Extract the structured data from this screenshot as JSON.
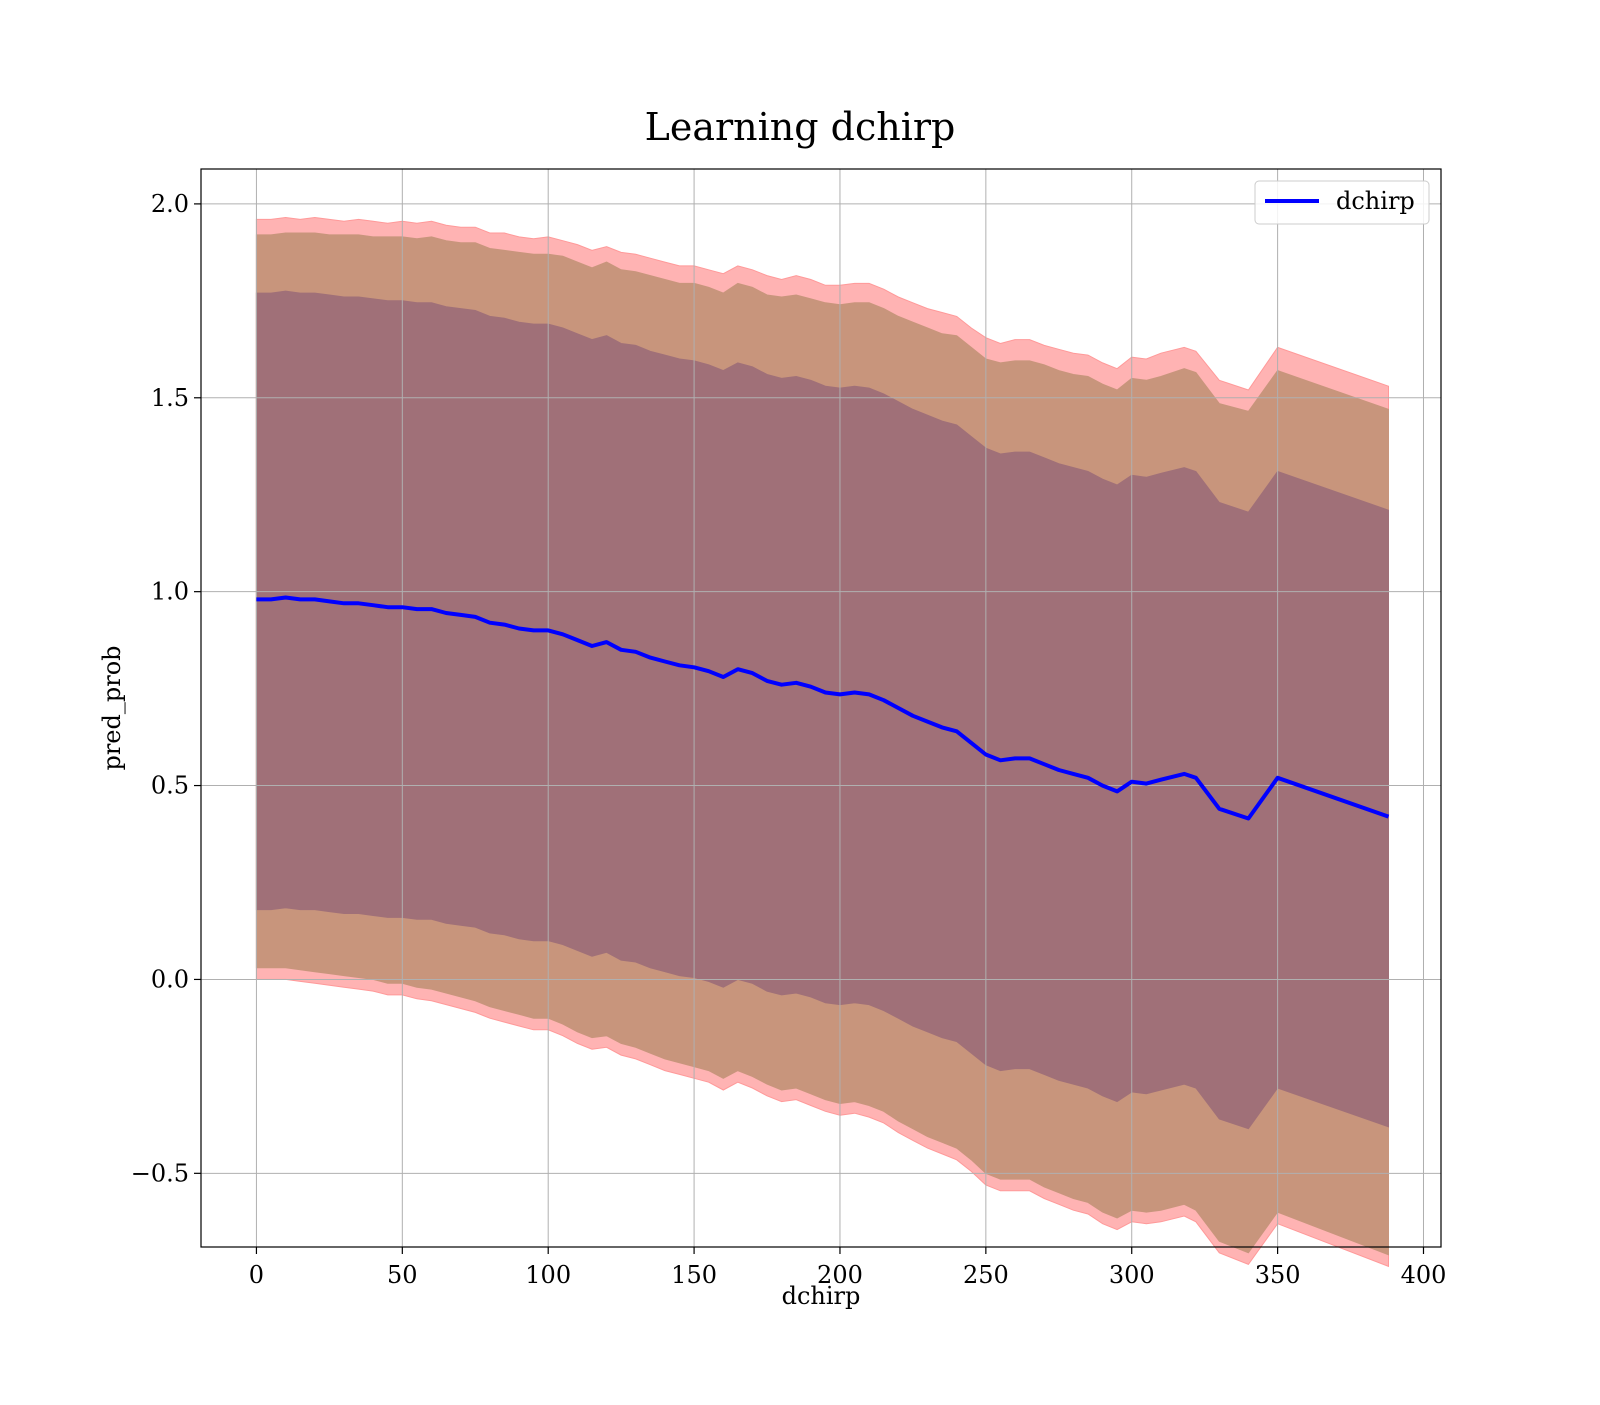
{
  "chart_data": {
    "type": "line",
    "title": "Learning dchirp",
    "xlabel": "dchirp",
    "ylabel": "pred_prob",
    "xlim": [
      -19,
      406
    ],
    "ylim": [
      -0.69,
      2.09
    ],
    "x_ticks": [
      0,
      50,
      100,
      150,
      200,
      250,
      300,
      350,
      400
    ],
    "y_ticks": [
      -0.5,
      0.0,
      0.5,
      1.0,
      1.5,
      2.0
    ],
    "x_tick_labels": [
      "0",
      "50",
      "100",
      "150",
      "200",
      "250",
      "300",
      "350",
      "400"
    ],
    "y_tick_labels": [
      "−0.5",
      "0.0",
      "0.5",
      "1.0",
      "1.5",
      "2.0"
    ],
    "grid": true,
    "legend_position": "top-right",
    "legend": [
      "dchirp"
    ],
    "series": [
      {
        "name": "dchirp",
        "color": "#0000ff",
        "x": [
          0,
          5,
          10,
          15,
          20,
          25,
          30,
          35,
          40,
          45,
          50,
          55,
          60,
          65,
          70,
          75,
          80,
          85,
          90,
          95,
          100,
          105,
          110,
          115,
          120,
          125,
          130,
          135,
          140,
          145,
          150,
          155,
          160,
          165,
          170,
          175,
          180,
          185,
          190,
          195,
          200,
          205,
          210,
          215,
          220,
          225,
          230,
          235,
          240,
          245,
          250,
          255,
          260,
          265,
          270,
          275,
          280,
          285,
          290,
          295,
          300,
          305,
          310,
          318,
          322,
          330,
          340,
          350,
          388
        ],
        "y": [
          0.98,
          0.98,
          0.985,
          0.98,
          0.98,
          0.975,
          0.97,
          0.97,
          0.965,
          0.96,
          0.96,
          0.955,
          0.955,
          0.945,
          0.94,
          0.935,
          0.92,
          0.915,
          0.905,
          0.9,
          0.9,
          0.89,
          0.875,
          0.86,
          0.87,
          0.85,
          0.845,
          0.83,
          0.82,
          0.81,
          0.805,
          0.795,
          0.78,
          0.8,
          0.79,
          0.77,
          0.76,
          0.765,
          0.755,
          0.74,
          0.735,
          0.74,
          0.735,
          0.72,
          0.7,
          0.68,
          0.665,
          0.65,
          0.64,
          0.61,
          0.58,
          0.565,
          0.57,
          0.57,
          0.555,
          0.54,
          0.53,
          0.52,
          0.5,
          0.485,
          0.51,
          0.505,
          0.515,
          0.53,
          0.52,
          0.44,
          0.415,
          0.52,
          0.42
        ]
      }
    ],
    "bands": [
      {
        "color": "#ff9999",
        "lower_offset": [
          -0.98,
          -0.98,
          -0.985,
          -0.985,
          -0.99,
          -0.99,
          -0.99,
          -0.995,
          -0.995,
          -1.0,
          -1.0,
          -1.005,
          -1.01,
          -1.01,
          -1.015,
          -1.02,
          -1.02,
          -1.025,
          -1.025,
          -1.03,
          -1.03,
          -1.035,
          -1.04,
          -1.04,
          -1.045,
          -1.045,
          -1.05,
          -1.05,
          -1.055,
          -1.055,
          -1.06,
          -1.06,
          -1.065,
          -1.065,
          -1.07,
          -1.07,
          -1.075,
          -1.075,
          -1.08,
          -1.08,
          -1.085,
          -1.085,
          -1.09,
          -1.09,
          -1.095,
          -1.095,
          -1.1,
          -1.1,
          -1.105,
          -1.105,
          -1.11,
          -1.11,
          -1.115,
          -1.115,
          -1.12,
          -1.12,
          -1.125,
          -1.125,
          -1.13,
          -1.13,
          -1.135,
          -1.135,
          -1.14,
          -1.14,
          -1.145,
          -1.145,
          -1.15,
          -1.15,
          -1.16
        ],
        "upper_offset": [
          0.98,
          0.98,
          0.98,
          0.98,
          0.985,
          0.985,
          0.985,
          0.99,
          0.99,
          0.99,
          0.995,
          0.995,
          1.0,
          1.0,
          1.0,
          1.005,
          1.005,
          1.01,
          1.01,
          1.01,
          1.015,
          1.015,
          1.02,
          1.02,
          1.02,
          1.025,
          1.025,
          1.03,
          1.03,
          1.03,
          1.035,
          1.035,
          1.04,
          1.04,
          1.04,
          1.045,
          1.045,
          1.05,
          1.05,
          1.05,
          1.055,
          1.055,
          1.06,
          1.06,
          1.06,
          1.065,
          1.065,
          1.07,
          1.07,
          1.07,
          1.075,
          1.075,
          1.08,
          1.08,
          1.08,
          1.085,
          1.085,
          1.09,
          1.09,
          1.09,
          1.095,
          1.095,
          1.1,
          1.1,
          1.1,
          1.105,
          1.105,
          1.11,
          1.11
        ],
        "opacity": 0.75
      },
      {
        "color": "#c8957c",
        "lower_offset": [
          -0.95,
          -0.95,
          -0.955,
          -0.955,
          -0.96,
          -0.96,
          -0.96,
          -0.965,
          -0.965,
          -0.97,
          -0.97,
          -0.975,
          -0.98,
          -0.98,
          -0.985,
          -0.99,
          -0.99,
          -0.995,
          -0.995,
          -1.0,
          -1.0,
          -1.005,
          -1.01,
          -1.01,
          -1.015,
          -1.015,
          -1.02,
          -1.02,
          -1.025,
          -1.025,
          -1.03,
          -1.03,
          -1.035,
          -1.035,
          -1.04,
          -1.04,
          -1.045,
          -1.045,
          -1.05,
          -1.05,
          -1.055,
          -1.055,
          -1.06,
          -1.06,
          -1.065,
          -1.065,
          -1.07,
          -1.07,
          -1.075,
          -1.075,
          -1.08,
          -1.08,
          -1.085,
          -1.085,
          -1.09,
          -1.09,
          -1.095,
          -1.095,
          -1.1,
          -1.1,
          -1.105,
          -1.105,
          -1.11,
          -1.11,
          -1.115,
          -1.115,
          -1.12,
          -1.12,
          -1.13
        ],
        "upper_offset": [
          0.94,
          0.94,
          0.94,
          0.945,
          0.945,
          0.945,
          0.95,
          0.95,
          0.95,
          0.955,
          0.955,
          0.955,
          0.96,
          0.96,
          0.96,
          0.965,
          0.965,
          0.965,
          0.97,
          0.97,
          0.97,
          0.975,
          0.975,
          0.975,
          0.98,
          0.98,
          0.98,
          0.985,
          0.985,
          0.985,
          0.99,
          0.99,
          0.99,
          0.995,
          0.995,
          0.995,
          1.0,
          1.0,
          1.0,
          1.005,
          1.005,
          1.005,
          1.01,
          1.01,
          1.01,
          1.015,
          1.015,
          1.015,
          1.02,
          1.02,
          1.02,
          1.025,
          1.025,
          1.025,
          1.03,
          1.03,
          1.03,
          1.035,
          1.035,
          1.035,
          1.04,
          1.04,
          1.04,
          1.045,
          1.045,
          1.045,
          1.05,
          1.05,
          1.05
        ],
        "opacity": 1
      },
      {
        "color": "#a07078",
        "lower_offset": [
          -0.8,
          -0.8,
          -0.8,
          -0.8,
          -0.8,
          -0.8,
          -0.8,
          -0.8,
          -0.8,
          -0.8,
          -0.8,
          -0.8,
          -0.8,
          -0.8,
          -0.8,
          -0.8,
          -0.8,
          -0.8,
          -0.8,
          -0.8,
          -0.8,
          -0.8,
          -0.8,
          -0.8,
          -0.8,
          -0.8,
          -0.8,
          -0.8,
          -0.8,
          -0.8,
          -0.8,
          -0.8,
          -0.8,
          -0.8,
          -0.8,
          -0.8,
          -0.8,
          -0.8,
          -0.8,
          -0.8,
          -0.8,
          -0.8,
          -0.8,
          -0.8,
          -0.8,
          -0.8,
          -0.8,
          -0.8,
          -0.8,
          -0.8,
          -0.8,
          -0.8,
          -0.8,
          -0.8,
          -0.8,
          -0.8,
          -0.8,
          -0.8,
          -0.8,
          -0.8,
          -0.8,
          -0.8,
          -0.8,
          -0.8,
          -0.8,
          -0.8,
          -0.8,
          -0.8,
          -0.8
        ],
        "upper_offset": [
          0.79,
          0.79,
          0.79,
          0.79,
          0.79,
          0.79,
          0.79,
          0.79,
          0.79,
          0.79,
          0.79,
          0.79,
          0.79,
          0.79,
          0.79,
          0.79,
          0.79,
          0.79,
          0.79,
          0.79,
          0.79,
          0.79,
          0.79,
          0.79,
          0.79,
          0.79,
          0.79,
          0.79,
          0.79,
          0.79,
          0.79,
          0.79,
          0.79,
          0.79,
          0.79,
          0.79,
          0.79,
          0.79,
          0.79,
          0.79,
          0.79,
          0.79,
          0.79,
          0.79,
          0.79,
          0.79,
          0.79,
          0.79,
          0.79,
          0.79,
          0.79,
          0.79,
          0.79,
          0.79,
          0.79,
          0.79,
          0.79,
          0.79,
          0.79,
          0.79,
          0.79,
          0.79,
          0.79,
          0.79,
          0.79,
          0.79,
          0.79,
          0.79,
          0.79
        ],
        "opacity": 1
      }
    ]
  }
}
